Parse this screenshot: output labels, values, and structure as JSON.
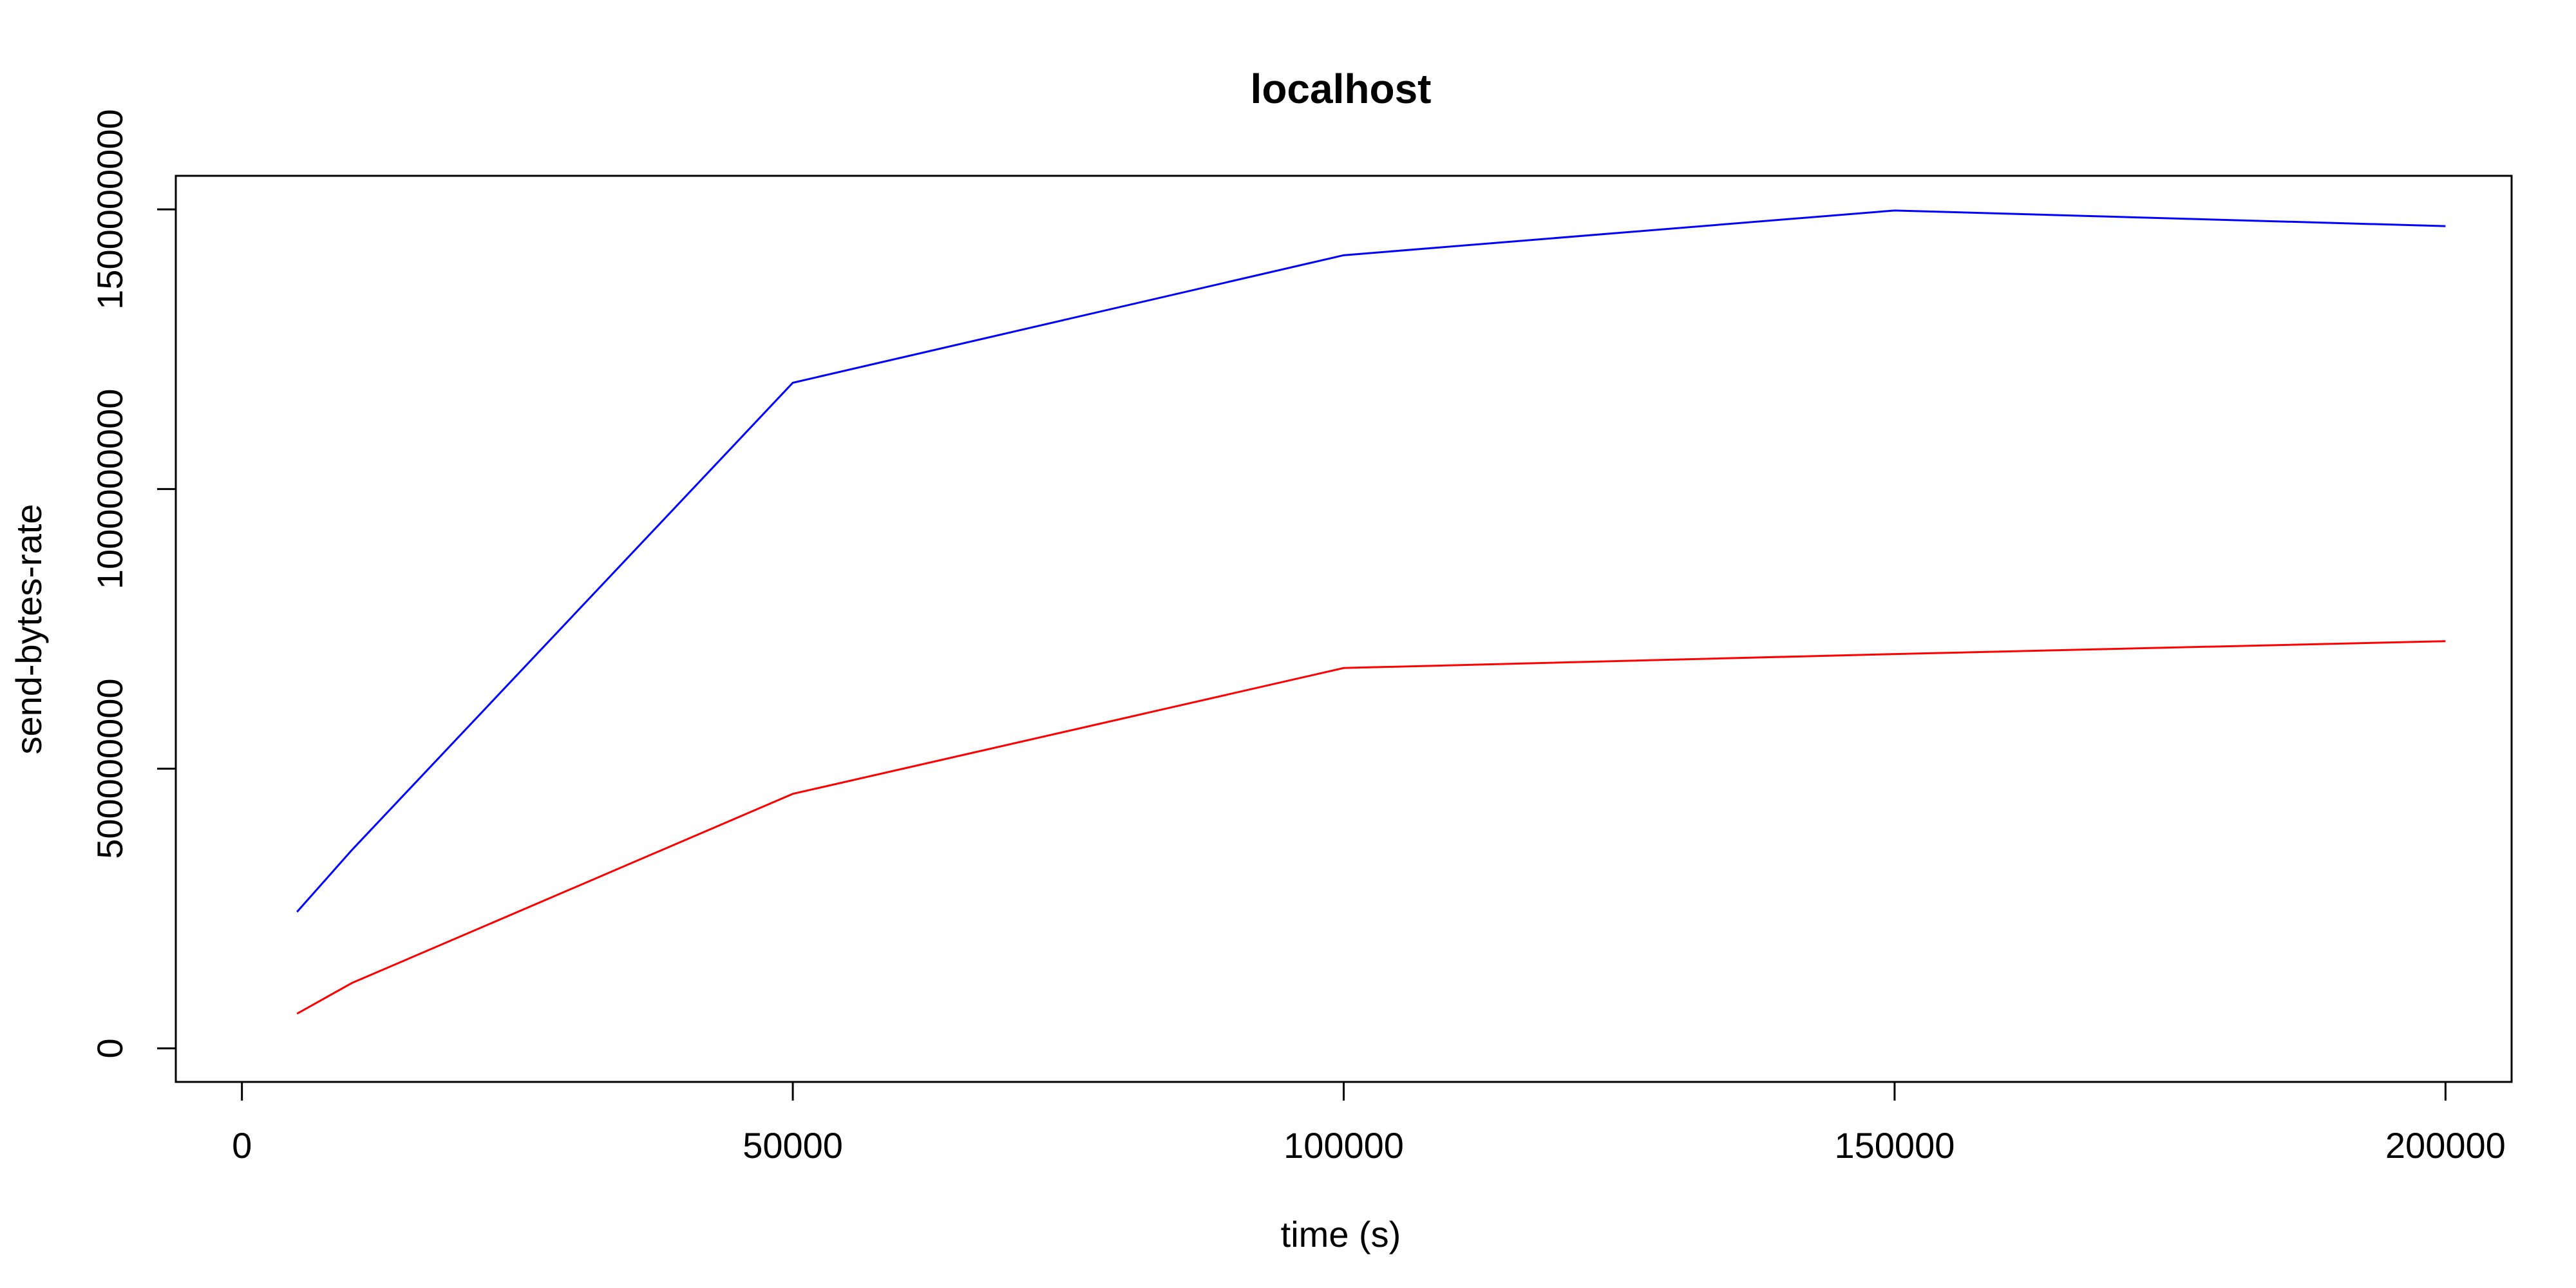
{
  "chart_data": {
    "type": "line",
    "title": "localhost",
    "xlabel": "time (s)",
    "ylabel": "send-bytes-rate",
    "xlim": [
      -6000,
      206000
    ],
    "ylim": [
      -60000000,
      1560000000
    ],
    "x_ticks": [
      0,
      50000,
      100000,
      150000,
      200000
    ],
    "x_tick_labels": [
      "0",
      "50000",
      "100000",
      "150000",
      "200000"
    ],
    "y_ticks": [
      0,
      500000000,
      1000000000,
      1500000000
    ],
    "y_tick_labels": [
      "0",
      "500000000",
      "1000000000",
      "1500000000"
    ],
    "grid": false,
    "series": [
      {
        "color": "#0000ff",
        "x": [
          5000,
          10000,
          50000,
          100000,
          150000,
          200000
        ],
        "values": [
          244000000,
          355000000,
          1190000000,
          1418000000,
          1498000000,
          1470000000
        ]
      },
      {
        "color": "#ff0000",
        "x": [
          5000,
          10000,
          50000,
          100000,
          150000,
          200000
        ],
        "values": [
          62000000,
          117000000,
          455000000,
          680000000,
          705000000,
          728000000
        ]
      }
    ]
  }
}
